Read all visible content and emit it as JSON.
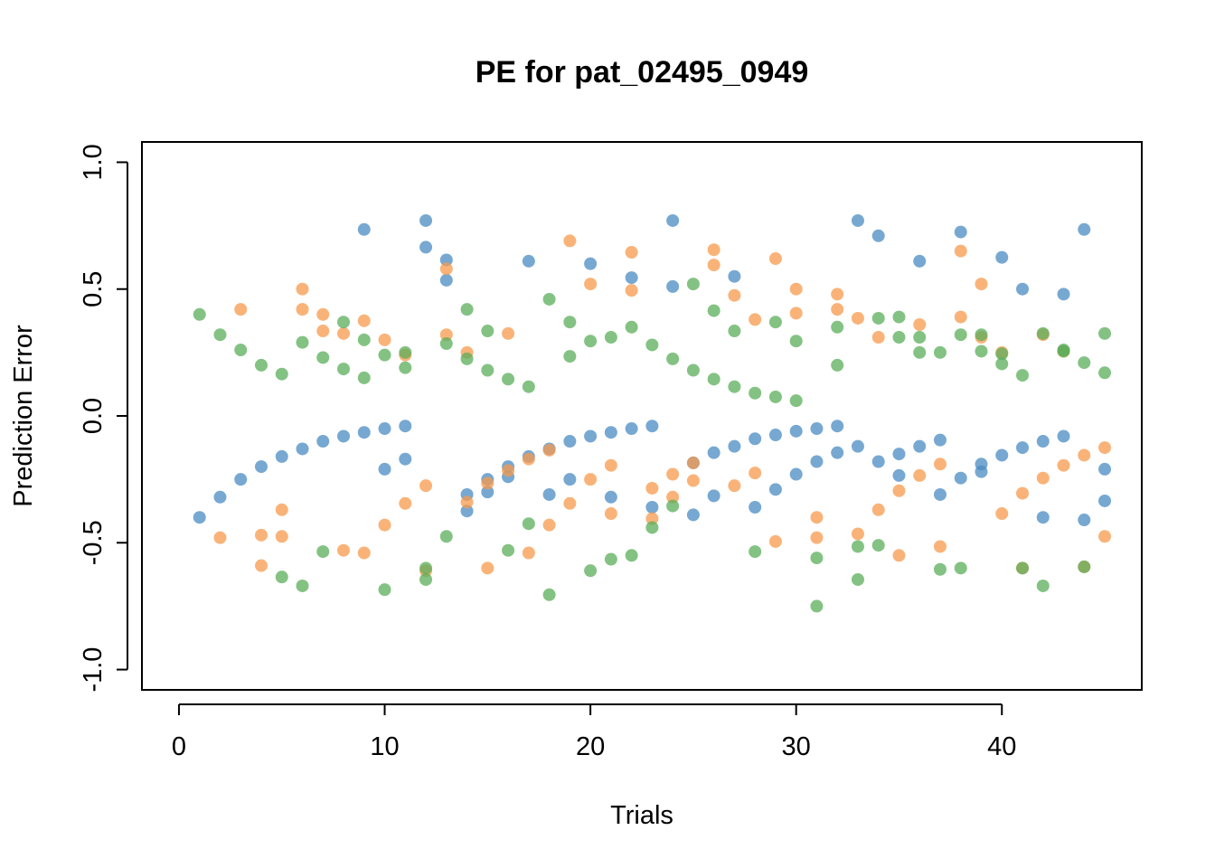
{
  "chart_data": {
    "type": "scatter",
    "title": "PE for pat_02495_0949",
    "xlabel": "Trials",
    "ylabel": "Prediction Error",
    "xlim": [
      -1.8,
      46.8
    ],
    "ylim": [
      -1.08,
      1.08
    ],
    "x_ticks": [
      0,
      10,
      20,
      30,
      40
    ],
    "y_ticks": [
      -1.0,
      -0.5,
      0.0,
      0.5,
      1.0
    ],
    "y_tick_labels": [
      "-1.0",
      "-0.5",
      "0.0",
      "0.5",
      "1.0"
    ],
    "grid": false,
    "legend": "none",
    "series": [
      {
        "color": "#4A8BC2",
        "points": [
          [
            1,
            -0.4
          ],
          [
            2,
            -0.32
          ],
          [
            3,
            -0.25
          ],
          [
            4,
            -0.2
          ],
          [
            5,
            -0.16
          ],
          [
            6,
            -0.13
          ],
          [
            7,
            -0.1
          ],
          [
            8,
            -0.08
          ],
          [
            9,
            -0.065
          ],
          [
            9,
            0.735
          ],
          [
            10,
            -0.05
          ],
          [
            10,
            -0.21
          ],
          [
            11,
            -0.04
          ],
          [
            11,
            -0.17
          ],
          [
            12,
            0.77
          ],
          [
            12,
            0.665
          ],
          [
            13,
            0.615
          ],
          [
            13,
            0.535
          ],
          [
            14,
            -0.31
          ],
          [
            14,
            -0.375
          ],
          [
            15,
            -0.25
          ],
          [
            15,
            -0.3
          ],
          [
            16,
            -0.2
          ],
          [
            16,
            -0.24
          ],
          [
            17,
            0.61
          ],
          [
            17,
            -0.16
          ],
          [
            18,
            -0.13
          ],
          [
            18,
            -0.31
          ],
          [
            19,
            -0.1
          ],
          [
            19,
            -0.25
          ],
          [
            20,
            0.6
          ],
          [
            20,
            -0.08
          ],
          [
            21,
            -0.065
          ],
          [
            21,
            -0.32
          ],
          [
            22,
            0.545
          ],
          [
            22,
            -0.05
          ],
          [
            23,
            -0.04
          ],
          [
            23,
            -0.36
          ],
          [
            24,
            0.77
          ],
          [
            24,
            0.51
          ],
          [
            25,
            -0.39
          ],
          [
            25,
            -0.185
          ],
          [
            26,
            -0.145
          ],
          [
            26,
            -0.315
          ],
          [
            27,
            0.55
          ],
          [
            27,
            -0.12
          ],
          [
            28,
            -0.09
          ],
          [
            28,
            -0.36
          ],
          [
            29,
            -0.075
          ],
          [
            29,
            -0.29
          ],
          [
            30,
            -0.06
          ],
          [
            30,
            -0.23
          ],
          [
            31,
            -0.05
          ],
          [
            31,
            -0.18
          ],
          [
            32,
            -0.04
          ],
          [
            32,
            -0.145
          ],
          [
            33,
            0.77
          ],
          [
            33,
            -0.12
          ],
          [
            34,
            0.71
          ],
          [
            34,
            -0.18
          ],
          [
            35,
            -0.15
          ],
          [
            35,
            -0.235
          ],
          [
            36,
            0.61
          ],
          [
            36,
            -0.12
          ],
          [
            37,
            -0.095
          ],
          [
            37,
            -0.31
          ],
          [
            38,
            0.725
          ],
          [
            38,
            -0.245
          ],
          [
            39,
            -0.19
          ],
          [
            39,
            -0.22
          ],
          [
            40,
            0.625
          ],
          [
            40,
            -0.155
          ],
          [
            41,
            0.5
          ],
          [
            41,
            -0.125
          ],
          [
            42,
            -0.4
          ],
          [
            42,
            -0.1
          ],
          [
            43,
            0.48
          ],
          [
            43,
            -0.08
          ],
          [
            44,
            0.735
          ],
          [
            44,
            -0.41
          ],
          [
            45,
            -0.21
          ],
          [
            45,
            -0.335
          ]
        ]
      },
      {
        "color": "#F79A4C",
        "points": [
          [
            2,
            -0.48
          ],
          [
            3,
            0.42
          ],
          [
            4,
            -0.47
          ],
          [
            4,
            -0.59
          ],
          [
            5,
            -0.37
          ],
          [
            5,
            -0.475
          ],
          [
            6,
            0.5
          ],
          [
            6,
            0.42
          ],
          [
            7,
            0.4
          ],
          [
            7,
            0.335
          ],
          [
            8,
            0.325
          ],
          [
            8,
            -0.53
          ],
          [
            9,
            0.375
          ],
          [
            9,
            -0.54
          ],
          [
            10,
            0.3
          ],
          [
            10,
            -0.43
          ],
          [
            11,
            0.24
          ],
          [
            11,
            -0.345
          ],
          [
            12,
            -0.275
          ],
          [
            12,
            -0.61
          ],
          [
            13,
            0.58
          ],
          [
            13,
            0.32
          ],
          [
            14,
            0.25
          ],
          [
            14,
            -0.34
          ],
          [
            15,
            -0.265
          ],
          [
            15,
            -0.6
          ],
          [
            16,
            0.325
          ],
          [
            16,
            -0.215
          ],
          [
            17,
            -0.17
          ],
          [
            17,
            -0.54
          ],
          [
            18,
            -0.135
          ],
          [
            18,
            -0.43
          ],
          [
            19,
            0.69
          ],
          [
            19,
            -0.345
          ],
          [
            20,
            0.52
          ],
          [
            20,
            -0.25
          ],
          [
            21,
            -0.195
          ],
          [
            21,
            -0.385
          ],
          [
            22,
            0.645
          ],
          [
            22,
            0.495
          ],
          [
            23,
            -0.285
          ],
          [
            23,
            -0.405
          ],
          [
            24,
            -0.23
          ],
          [
            24,
            -0.32
          ],
          [
            25,
            -0.255
          ],
          [
            25,
            -0.185
          ],
          [
            26,
            0.655
          ],
          [
            26,
            0.595
          ],
          [
            27,
            0.475
          ],
          [
            27,
            -0.275
          ],
          [
            28,
            0.38
          ],
          [
            28,
            -0.225
          ],
          [
            29,
            0.62
          ],
          [
            29,
            -0.495
          ],
          [
            30,
            0.5
          ],
          [
            30,
            0.405
          ],
          [
            31,
            -0.4
          ],
          [
            31,
            -0.48
          ],
          [
            32,
            0.48
          ],
          [
            32,
            0.42
          ],
          [
            33,
            0.385
          ],
          [
            33,
            -0.465
          ],
          [
            34,
            0.31
          ],
          [
            34,
            -0.37
          ],
          [
            35,
            -0.295
          ],
          [
            35,
            -0.55
          ],
          [
            36,
            0.36
          ],
          [
            36,
            -0.235
          ],
          [
            37,
            -0.19
          ],
          [
            37,
            -0.515
          ],
          [
            38,
            0.65
          ],
          [
            38,
            0.39
          ],
          [
            39,
            0.52
          ],
          [
            39,
            0.31
          ],
          [
            40,
            0.25
          ],
          [
            40,
            -0.385
          ],
          [
            41,
            -0.305
          ],
          [
            41,
            -0.6
          ],
          [
            42,
            0.32
          ],
          [
            42,
            -0.245
          ],
          [
            43,
            0.255
          ],
          [
            43,
            -0.195
          ],
          [
            44,
            -0.155
          ],
          [
            44,
            -0.595
          ],
          [
            45,
            -0.125
          ],
          [
            45,
            -0.475
          ]
        ]
      },
      {
        "color": "#5AAE5A",
        "points": [
          [
            1,
            0.4
          ],
          [
            2,
            0.32
          ],
          [
            3,
            0.26
          ],
          [
            4,
            0.2
          ],
          [
            5,
            0.165
          ],
          [
            5,
            -0.635
          ],
          [
            6,
            0.29
          ],
          [
            6,
            -0.67
          ],
          [
            7,
            0.23
          ],
          [
            7,
            -0.535
          ],
          [
            8,
            0.37
          ],
          [
            8,
            0.185
          ],
          [
            9,
            0.3
          ],
          [
            9,
            0.15
          ],
          [
            10,
            0.24
          ],
          [
            10,
            -0.685
          ],
          [
            11,
            0.25
          ],
          [
            11,
            0.19
          ],
          [
            12,
            -0.6
          ],
          [
            12,
            -0.645
          ],
          [
            13,
            0.285
          ],
          [
            13,
            -0.475
          ],
          [
            14,
            0.42
          ],
          [
            14,
            0.225
          ],
          [
            15,
            0.335
          ],
          [
            15,
            0.18
          ],
          [
            16,
            0.145
          ],
          [
            16,
            -0.53
          ],
          [
            17,
            0.115
          ],
          [
            17,
            -0.425
          ],
          [
            18,
            0.46
          ],
          [
            18,
            -0.705
          ],
          [
            19,
            0.37
          ],
          [
            19,
            0.235
          ],
          [
            20,
            0.295
          ],
          [
            20,
            -0.61
          ],
          [
            21,
            0.31
          ],
          [
            21,
            -0.565
          ],
          [
            22,
            0.35
          ],
          [
            22,
            -0.55
          ],
          [
            23,
            0.28
          ],
          [
            23,
            -0.44
          ],
          [
            24,
            0.225
          ],
          [
            24,
            -0.355
          ],
          [
            25,
            0.52
          ],
          [
            25,
            0.18
          ],
          [
            26,
            0.415
          ],
          [
            26,
            0.145
          ],
          [
            27,
            0.335
          ],
          [
            27,
            0.115
          ],
          [
            28,
            0.09
          ],
          [
            28,
            -0.535
          ],
          [
            29,
            0.37
          ],
          [
            29,
            0.075
          ],
          [
            30,
            0.295
          ],
          [
            30,
            0.06
          ],
          [
            31,
            -0.56
          ],
          [
            31,
            -0.75
          ],
          [
            32,
            0.35
          ],
          [
            32,
            0.2
          ],
          [
            33,
            -0.515
          ],
          [
            33,
            -0.645
          ],
          [
            34,
            0.385
          ],
          [
            34,
            -0.51
          ],
          [
            35,
            0.39
          ],
          [
            35,
            0.31
          ],
          [
            36,
            0.31
          ],
          [
            36,
            0.25
          ],
          [
            37,
            0.25
          ],
          [
            37,
            -0.605
          ],
          [
            38,
            0.32
          ],
          [
            38,
            -0.6
          ],
          [
            39,
            0.32
          ],
          [
            39,
            0.255
          ],
          [
            40,
            0.245
          ],
          [
            40,
            0.205
          ],
          [
            41,
            0.16
          ],
          [
            41,
            -0.6
          ],
          [
            42,
            0.325
          ],
          [
            42,
            -0.67
          ],
          [
            43,
            0.26
          ],
          [
            43,
            0.255
          ],
          [
            44,
            0.21
          ],
          [
            44,
            -0.595
          ],
          [
            45,
            0.325
          ],
          [
            45,
            0.17
          ]
        ]
      }
    ]
  }
}
